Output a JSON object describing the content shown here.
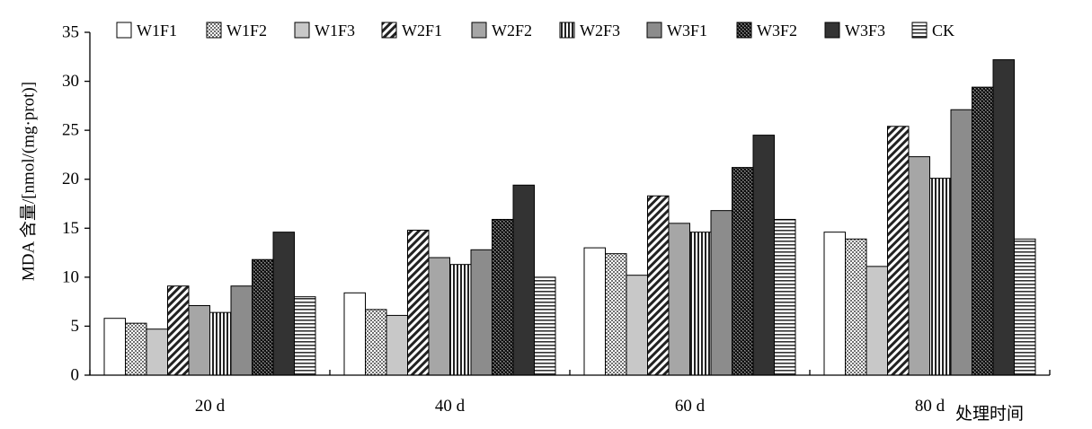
{
  "chart_data": {
    "type": "bar",
    "title": "",
    "xlabel": "处理时间",
    "ylabel": "MDA 含量/[nmol/(mg·prot)]",
    "ylim": [
      0,
      35
    ],
    "yticks": [
      0,
      5,
      10,
      15,
      20,
      25,
      30,
      35
    ],
    "categories": [
      "20 d",
      "40 d",
      "60 d",
      "80 d"
    ],
    "legend_position": "top",
    "grid": false,
    "series": [
      {
        "name": "W1F1",
        "values": [
          5.8,
          8.4,
          13.0,
          14.6
        ],
        "color": "#ffffff",
        "pattern": "solid-white"
      },
      {
        "name": "W1F2",
        "values": [
          5.3,
          6.7,
          12.4,
          13.9
        ],
        "color": "#d9d9d9",
        "pattern": "fine-dots"
      },
      {
        "name": "W1F3",
        "values": [
          4.7,
          6.1,
          10.2,
          11.1
        ],
        "color": "#c8c8c8",
        "pattern": "solid-light-gray"
      },
      {
        "name": "W2F1",
        "values": [
          9.1,
          14.8,
          18.3,
          25.4
        ],
        "color": "#ffffff",
        "pattern": "diagonal-stripes"
      },
      {
        "name": "W2F2",
        "values": [
          7.1,
          12.0,
          15.5,
          22.3
        ],
        "color": "#a6a6a6",
        "pattern": "solid-mid-gray"
      },
      {
        "name": "W2F3",
        "values": [
          6.4,
          11.3,
          14.6,
          20.1
        ],
        "color": "#ffffff",
        "pattern": "vertical-stripes"
      },
      {
        "name": "W3F1",
        "values": [
          9.1,
          12.8,
          16.8,
          27.1
        ],
        "color": "#8c8c8c",
        "pattern": "solid-dark-gray"
      },
      {
        "name": "W3F2",
        "values": [
          11.8,
          15.9,
          21.2,
          29.4
        ],
        "color": "#595959",
        "pattern": "dark-dots"
      },
      {
        "name": "W3F3",
        "values": [
          14.6,
          19.4,
          24.5,
          32.2
        ],
        "color": "#333333",
        "pattern": "solid-black"
      },
      {
        "name": "CK",
        "values": [
          8.0,
          10.0,
          15.9,
          13.9
        ],
        "color": "#ffffff",
        "pattern": "horizontal-stripes"
      }
    ]
  }
}
